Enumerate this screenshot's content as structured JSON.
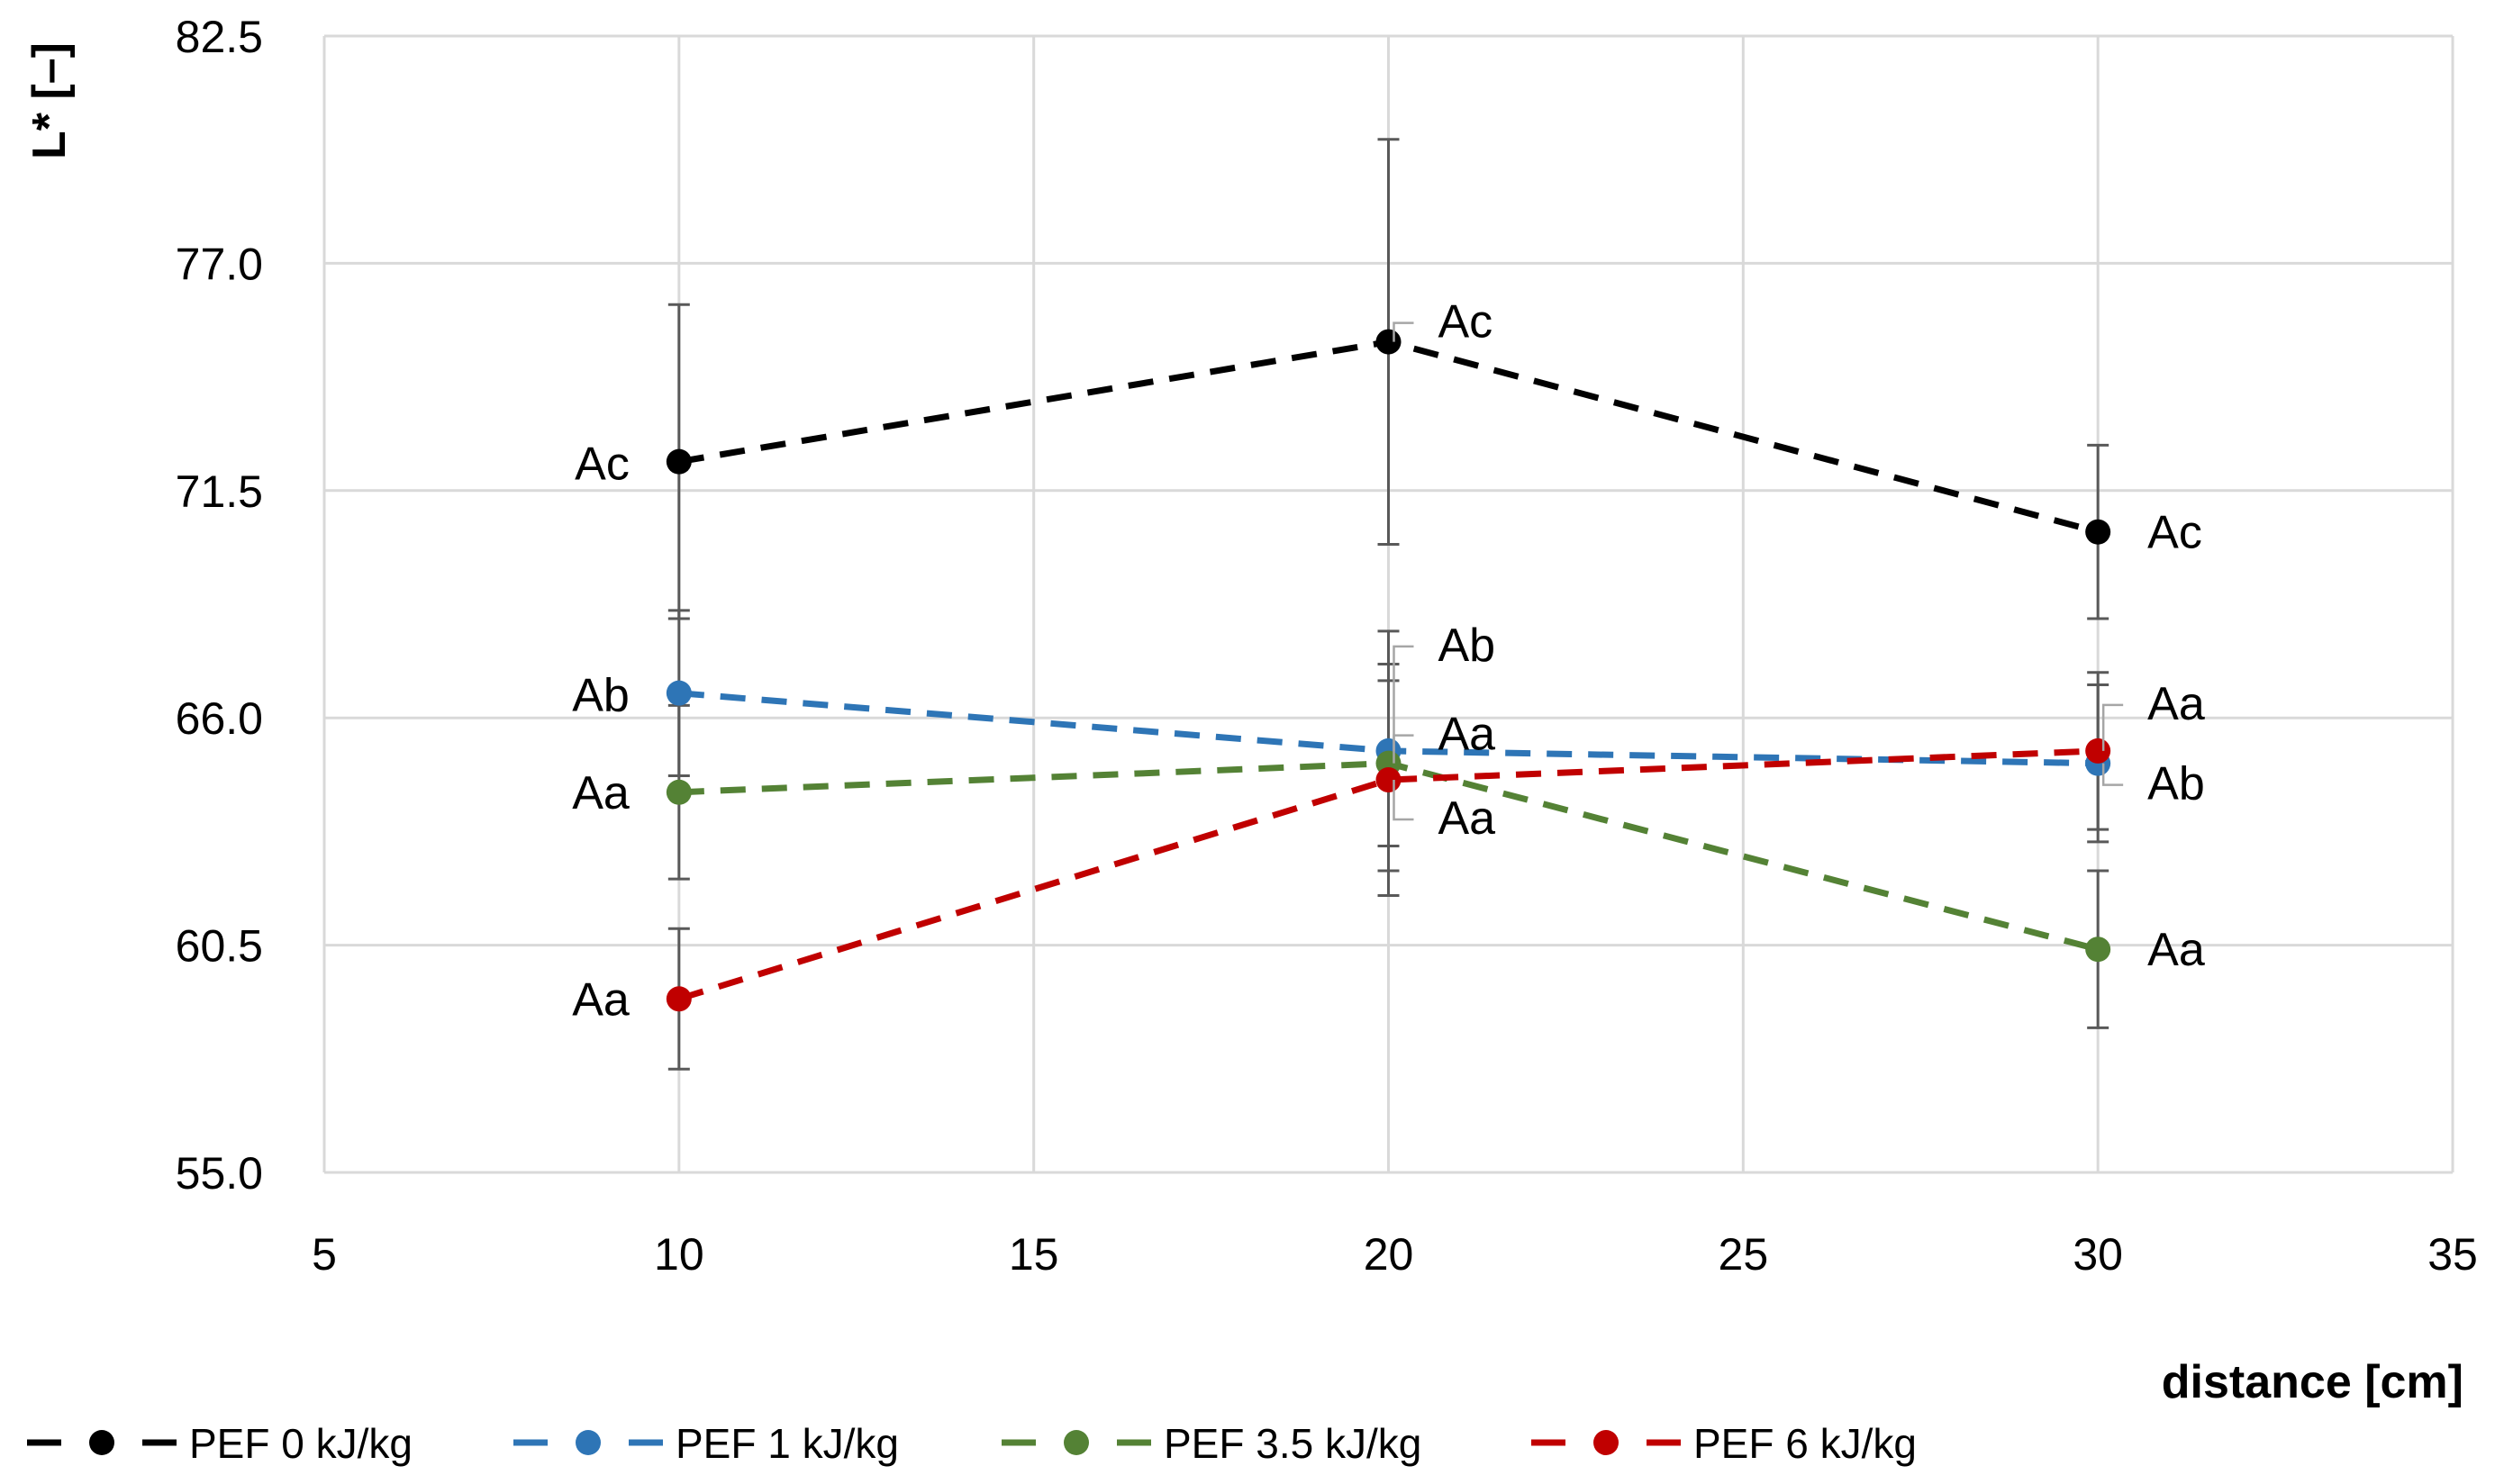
{
  "chart_data": {
    "type": "line",
    "title": "",
    "xlabel": "distance [cm]",
    "ylabel": "L* [–]",
    "xlim": [
      5,
      35
    ],
    "ylim": [
      55.0,
      82.5
    ],
    "x_ticks": [
      "5",
      "10",
      "15",
      "20",
      "25",
      "30",
      "35"
    ],
    "y_ticks": [
      "55.0",
      "60.5",
      "66.0",
      "71.5",
      "77.0",
      "82.5"
    ],
    "grid": true,
    "legend_position": "bottom",
    "x": [
      10,
      20,
      30
    ],
    "series": [
      {
        "name": "PEF 0 kJ/kg",
        "color": "#000000",
        "values": [
          72.2,
          75.1,
          70.5
        ],
        "error": [
          3.8,
          4.9,
          2.1
        ],
        "labels": [
          "Ac",
          "Ac",
          "Ac"
        ]
      },
      {
        "name": "PEF 1 kJ/kg",
        "color": "#2E75B6",
        "values": [
          66.6,
          65.2,
          64.9
        ],
        "error": [
          2.0,
          2.9,
          1.9
        ],
        "labels": [
          "Ab",
          "Ab",
          "Ab"
        ]
      },
      {
        "name": "PEF 3.5 kJ/kg",
        "color": "#548235",
        "values": [
          64.2,
          64.9,
          60.4
        ],
        "error": [
          2.1,
          2.0,
          1.9
        ],
        "labels": [
          "Aa",
          "Aa",
          "Aa"
        ]
      },
      {
        "name": "PEF 6 kJ/kg",
        "color": "#C00000",
        "values": [
          59.2,
          64.5,
          65.2
        ],
        "error": [
          1.7,
          2.8,
          1.9
        ],
        "labels": [
          "Aa",
          "Aa",
          "Aa"
        ]
      }
    ]
  }
}
